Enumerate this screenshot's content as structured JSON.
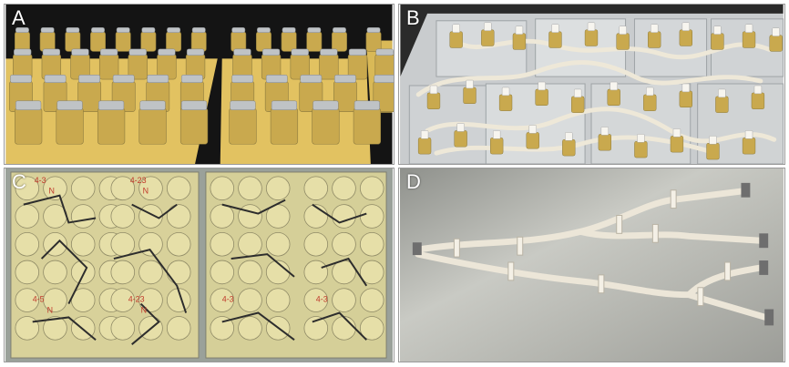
{
  "panels": [
    {
      "letter": "A",
      "subject": "jars-on-trays"
    },
    {
      "letter": "B",
      "subject": "bottles-connected-by-tubing"
    },
    {
      "letter": "C",
      "subject": "well-plates"
    },
    {
      "letter": "D",
      "subject": "branching-tube-network"
    }
  ],
  "colors": {
    "letter": "#ffffff",
    "liquid": "#c9a94e",
    "tray": "#e8c96a",
    "foil": "#bfc3c6",
    "plate_bg": "#d9d29a",
    "steel": "#b9b9b2",
    "tubing": "#efe9dc",
    "marker_red": "#c0392b"
  },
  "plate_labels": [
    "4-3",
    "4-23",
    "4-5",
    "4-23",
    "4-3",
    "4-3",
    "N",
    "N",
    "N",
    "N"
  ]
}
